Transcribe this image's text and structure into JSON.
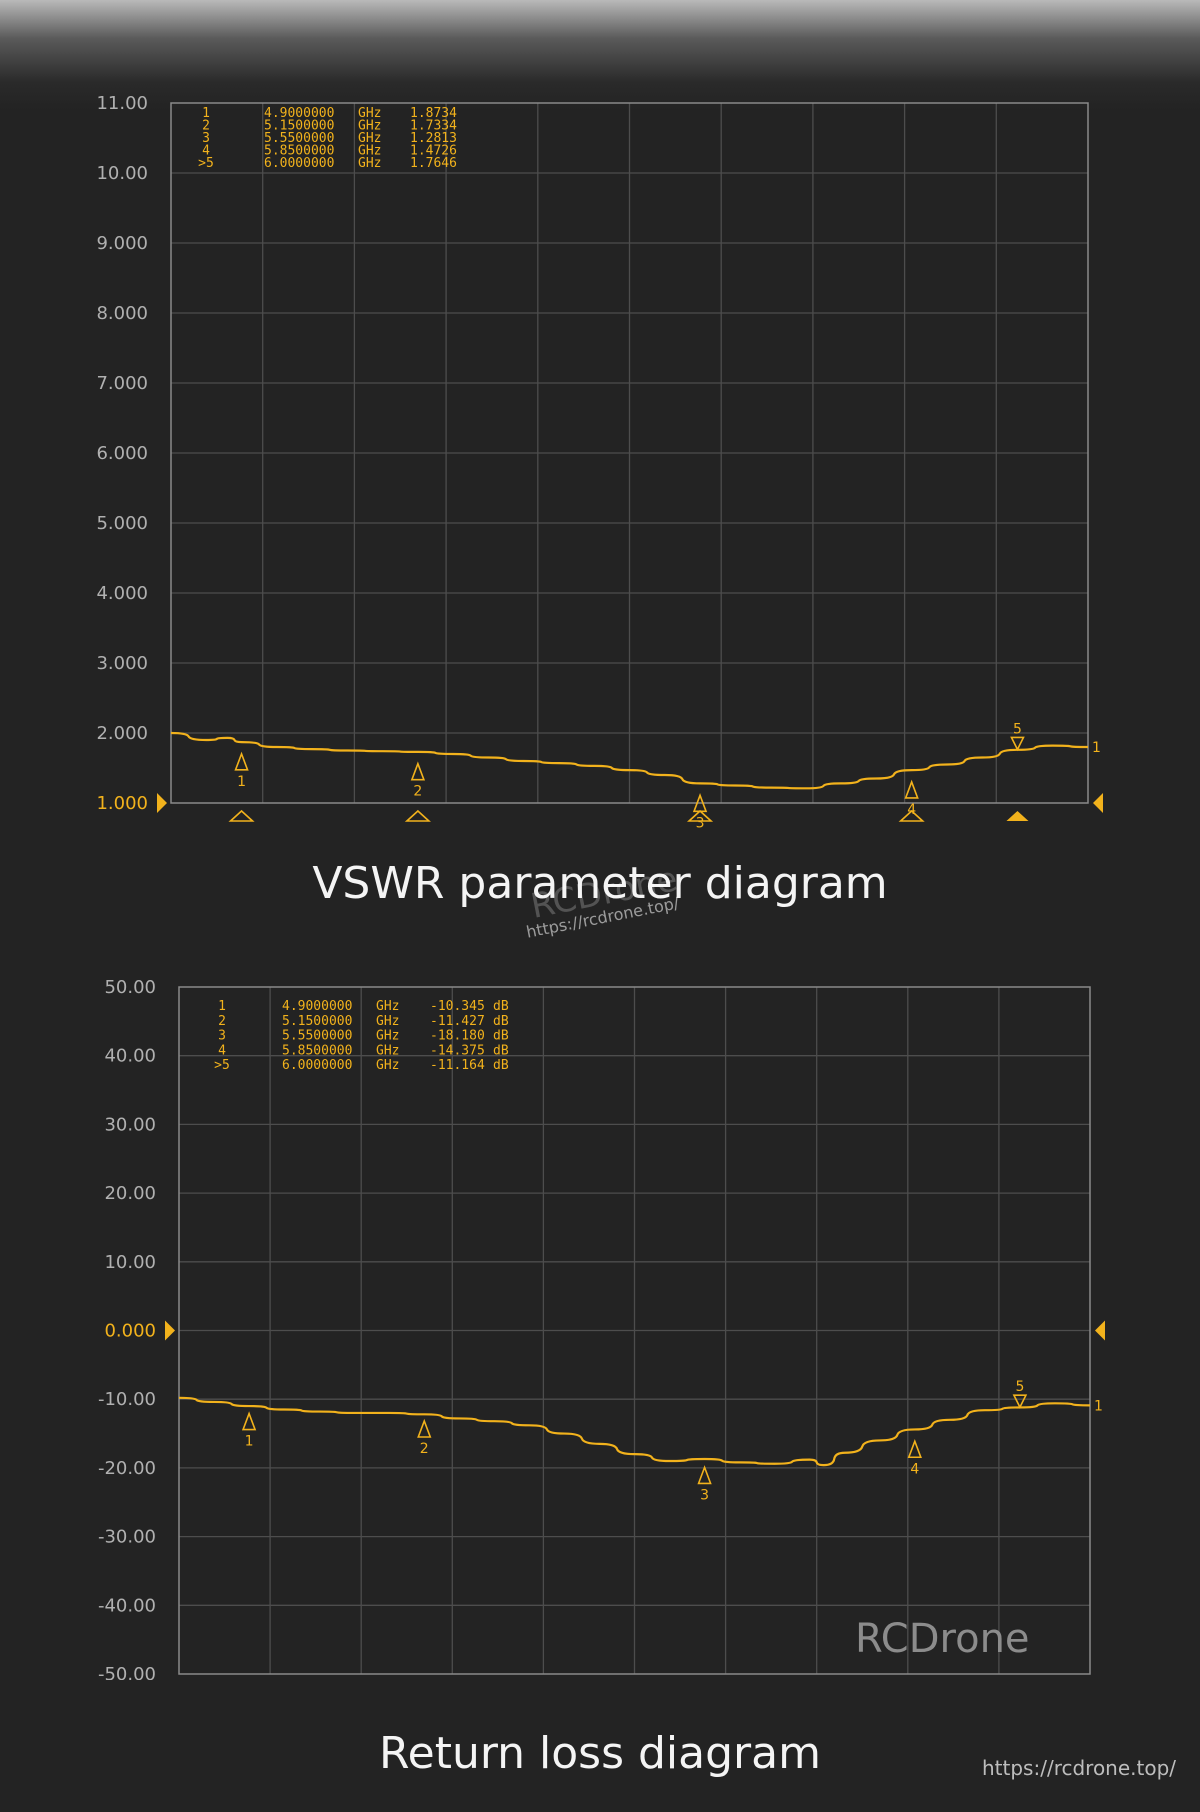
{
  "chart_data": [
    {
      "type": "line",
      "title": "VSWR parameter diagram",
      "xlabel": "",
      "ylabel": "",
      "x_unit": "GHz",
      "xlim": [
        4.8,
        6.1
      ],
      "ylim": [
        1.0,
        11.0
      ],
      "y_ticks": [
        "11.00",
        "10.00",
        "9.000",
        "8.000",
        "7.000",
        "6.000",
        "5.000",
        "4.000",
        "3.000",
        "2.000",
        "1.000"
      ],
      "highlight_tick": "1.000",
      "grid": true,
      "series": [
        {
          "x": [
            4.8,
            4.85,
            4.88,
            4.9,
            4.95,
            5.0,
            5.05,
            5.1,
            5.15,
            5.2,
            5.25,
            5.3,
            5.35,
            5.4,
            5.45,
            5.5,
            5.55,
            5.6,
            5.65,
            5.7,
            5.75,
            5.8,
            5.85,
            5.9,
            5.95,
            6.0,
            6.05,
            6.1
          ],
          "values": [
            2.0,
            1.9,
            1.93,
            1.87,
            1.8,
            1.77,
            1.75,
            1.74,
            1.73,
            1.7,
            1.65,
            1.6,
            1.57,
            1.53,
            1.47,
            1.4,
            1.28,
            1.25,
            1.22,
            1.21,
            1.28,
            1.35,
            1.47,
            1.55,
            1.65,
            1.76,
            1.82,
            1.8
          ]
        }
      ],
      "markers": [
        {
          "id": "1",
          "freq": 4.9,
          "value": 1.8734
        },
        {
          "id": "2",
          "freq": 5.15,
          "value": 1.7334
        },
        {
          "id": "3",
          "freq": 5.55,
          "value": 1.2813
        },
        {
          "id": "4",
          "freq": 5.85,
          "value": 1.4726
        },
        {
          "id": "5",
          "freq": 6.0,
          "value": 1.7646
        }
      ],
      "marker_table": [
        {
          "id": "1",
          "freq": "4.9000000",
          "unit": "GHz",
          "value": "1.8734"
        },
        {
          "id": "2",
          "freq": "5.1500000",
          "unit": "GHz",
          "value": "1.7334"
        },
        {
          "id": "3",
          "freq": "5.5500000",
          "unit": "GHz",
          "value": "1.2813"
        },
        {
          "id": "4",
          "freq": "5.8500000",
          "unit": "GHz",
          "value": "1.4726"
        },
        {
          "id": ">5",
          "freq": "6.0000000",
          "unit": "GHz",
          "value": "1.7646"
        }
      ],
      "trace_label": "1"
    },
    {
      "type": "line",
      "title": "Return loss diagram",
      "xlabel": "",
      "ylabel": "",
      "x_unit": "GHz",
      "y_unit": "dB",
      "xlim": [
        4.8,
        6.1
      ],
      "ylim": [
        -50,
        50
      ],
      "y_ticks": [
        "50.00",
        "40.00",
        "30.00",
        "20.00",
        "10.00",
        "0.000",
        "-10.00",
        "-20.00",
        "-30.00",
        "-40.00",
        "-50.00"
      ],
      "highlight_tick": "0.000",
      "grid": true,
      "series": [
        {
          "x": [
            4.8,
            4.85,
            4.9,
            4.95,
            5.0,
            5.05,
            5.1,
            5.15,
            5.2,
            5.25,
            5.3,
            5.35,
            5.4,
            5.45,
            5.5,
            5.55,
            5.6,
            5.65,
            5.7,
            5.72,
            5.75,
            5.8,
            5.85,
            5.9,
            5.95,
            6.0,
            6.05,
            6.1
          ],
          "values": [
            -9.8,
            -10.4,
            -11.0,
            -11.5,
            -11.8,
            -12.0,
            -12.0,
            -12.2,
            -12.8,
            -13.2,
            -13.8,
            -15.0,
            -16.5,
            -18.0,
            -19.0,
            -18.7,
            -19.2,
            -19.4,
            -18.8,
            -19.6,
            -17.8,
            -16.0,
            -14.4,
            -13.0,
            -11.6,
            -11.2,
            -10.6,
            -10.9
          ]
        }
      ],
      "markers": [
        {
          "id": "1",
          "freq": 4.9,
          "value": -10.345
        },
        {
          "id": "2",
          "freq": 5.15,
          "value": -11.427
        },
        {
          "id": "3",
          "freq": 5.55,
          "value": -18.18
        },
        {
          "id": "4",
          "freq": 5.85,
          "value": -14.375
        },
        {
          "id": "5",
          "freq": 6.0,
          "value": -11.164
        }
      ],
      "marker_table": [
        {
          "id": "1",
          "freq": "4.9000000",
          "unit": "GHz",
          "value": "-10.345",
          "vunit": "dB"
        },
        {
          "id": "2",
          "freq": "5.1500000",
          "unit": "GHz",
          "value": "-11.427",
          "vunit": "dB"
        },
        {
          "id": "3",
          "freq": "5.5500000",
          "unit": "GHz",
          "value": "-18.180",
          "vunit": "dB"
        },
        {
          "id": "4",
          "freq": "5.8500000",
          "unit": "GHz",
          "value": "-14.375",
          "vunit": "dB"
        },
        {
          "id": ">5",
          "freq": "6.0000000",
          "unit": "GHz",
          "value": "-11.164",
          "vunit": "dB"
        }
      ],
      "trace_label": "1"
    }
  ],
  "colors": {
    "trace": "#f2b21c",
    "grid": "#4d4d4d",
    "frame": "#8a8a8a",
    "tick_text": "#b0b0b0",
    "highlight": "#f2b21c"
  },
  "watermark": {
    "brand": "RCDrone",
    "url": "https://rcdrone.top/"
  },
  "footer": {
    "url": "https://rcdrone.top/"
  }
}
